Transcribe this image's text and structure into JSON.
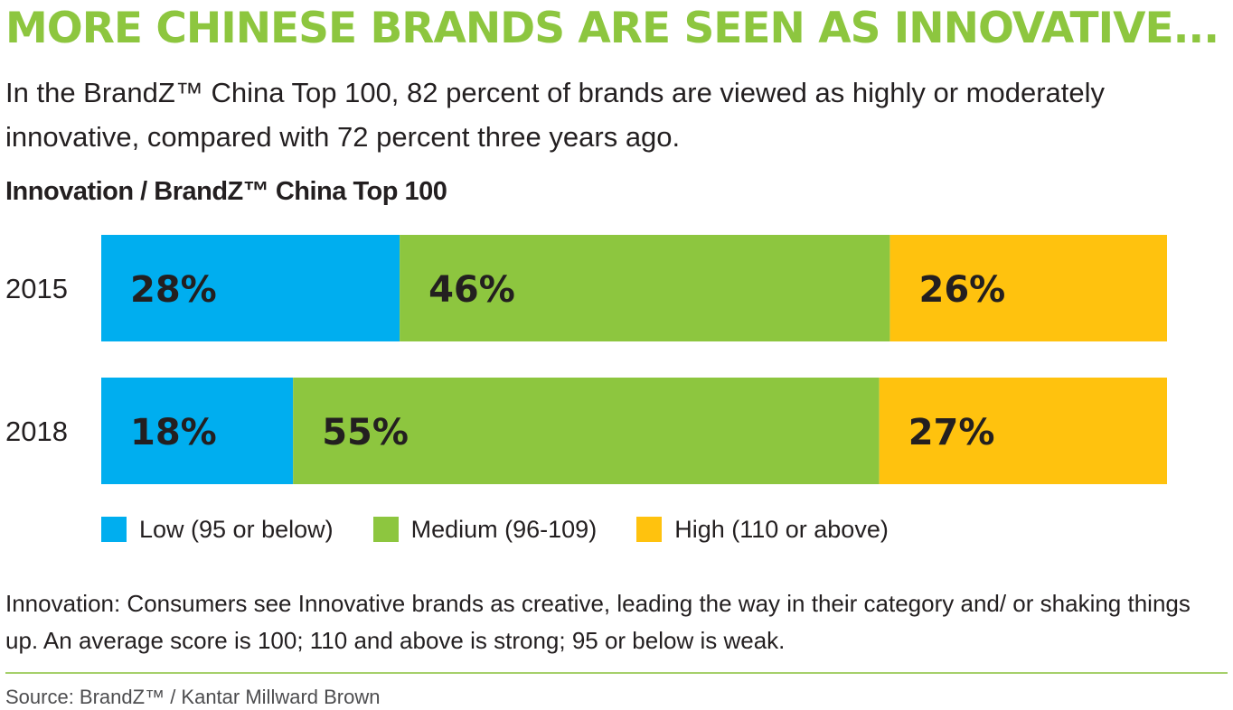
{
  "headline": "MORE CHINESE BRANDS ARE SEEN AS INNOVATIVE...",
  "subhead": "In the BrandZ™ China Top 100, 82 percent of brands are viewed as highly or moderately innovative, compared with 72 percent three years ago.",
  "note": "Innovation: Consumers see Innovative brands as creative, leading the way in their category and/ or shaking things up. An average score is 100; 110 and above is strong; 95 or below is weak.",
  "source": "Source: BrandZ™ / Kantar Millward Brown",
  "colors": {
    "low": "#00aeef",
    "medium": "#8dc63f",
    "high": "#ffc20e",
    "accent": "#8dc63f"
  },
  "chart_data": {
    "type": "bar",
    "orientation": "horizontal",
    "stacked": true,
    "title": "Innovation / BrandZ™ China Top 100",
    "categories": [
      "2015",
      "2018"
    ],
    "series": [
      {
        "name": "Low (95 or below)",
        "values": [
          28,
          18
        ],
        "labels": [
          "28%",
          "18%"
        ],
        "color": "#00aeef"
      },
      {
        "name": "Medium (96-109)",
        "values": [
          46,
          55
        ],
        "labels": [
          "46%",
          "55%"
        ],
        "color": "#8dc63f"
      },
      {
        "name": "High (110 or above)",
        "values": [
          26,
          27
        ],
        "labels": [
          "26%",
          "27%"
        ],
        "color": "#ffc20e"
      }
    ],
    "unit": "%",
    "xlim": [
      0,
      100
    ],
    "grid": false,
    "legend_position": "bottom"
  }
}
